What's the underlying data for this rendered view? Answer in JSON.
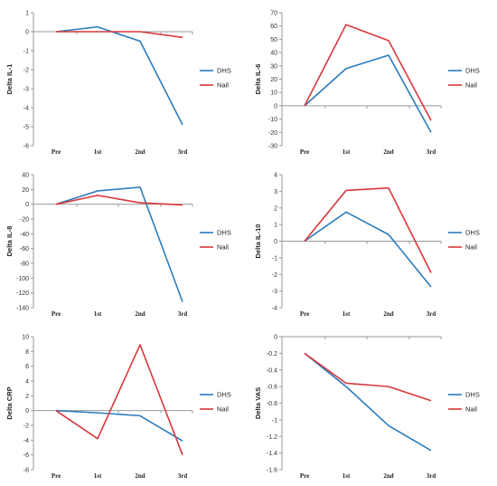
{
  "colors": {
    "DHS": "#2b7bbd",
    "Nail": "#d9373b",
    "axis": "#9a9a9a"
  },
  "chart_data": [
    {
      "type": "line",
      "categories": [
        "Pre",
        "1st",
        "2nd",
        "3rd"
      ],
      "ylabel": "Delta IL-1",
      "ylim": [
        -6,
        1
      ],
      "yticks": [
        1,
        0,
        -1,
        -2,
        -3,
        -4,
        -5,
        -6
      ],
      "ytick_labels": [
        "1",
        "0",
        "-1",
        "-2",
        "-3",
        "-4",
        "-5",
        "-6"
      ],
      "legend_position": "right",
      "series": [
        {
          "name": "DHS",
          "values": [
            0,
            0.25,
            -0.5,
            -4.9
          ]
        },
        {
          "name": "Nail",
          "values": [
            0,
            0,
            0,
            -0.3
          ]
        }
      ]
    },
    {
      "type": "line",
      "categories": [
        "Pre",
        "1st",
        "2nd",
        "3rd"
      ],
      "ylabel": "Delta IL-6",
      "ylim": [
        -30,
        70
      ],
      "yticks": [
        70,
        60,
        50,
        40,
        30,
        20,
        10,
        0,
        -10,
        -20,
        -30
      ],
      "ytick_labels": [
        "70",
        "60",
        "50",
        "40",
        "30",
        "20",
        "10",
        "0",
        "-10",
        "-20",
        "-30"
      ],
      "legend_position": "right",
      "series": [
        {
          "name": "DHS",
          "values": [
            0,
            28,
            38,
            -20
          ]
        },
        {
          "name": "Nail",
          "values": [
            0,
            61,
            49,
            -11
          ]
        }
      ]
    },
    {
      "type": "line",
      "categories": [
        "Pre",
        "1st",
        "2nd",
        "3rd"
      ],
      "ylabel": "Delta IL-8",
      "ylim": [
        -140,
        40
      ],
      "yticks": [
        40,
        20,
        0,
        -20,
        -40,
        -60,
        -80,
        -100,
        -120,
        -140
      ],
      "ytick_labels": [
        "40",
        "20",
        "0",
        "-20",
        "-40",
        "-60",
        "-80",
        "-100",
        "-120",
        "-140"
      ],
      "legend_position": "right",
      "series": [
        {
          "name": "DHS",
          "values": [
            0,
            18,
            23,
            -132
          ]
        },
        {
          "name": "Nail",
          "values": [
            0,
            12,
            2,
            -1
          ]
        }
      ]
    },
    {
      "type": "line",
      "categories": [
        "Pre",
        "1st",
        "2nd",
        "3rd"
      ],
      "ylabel": "Delta IL-10",
      "ylim": [
        -4,
        4
      ],
      "yticks": [
        4,
        3,
        2,
        1,
        0,
        -1,
        -2,
        -3,
        -4
      ],
      "ytick_labels": [
        "4",
        "3",
        "2",
        "1",
        "0",
        "-1",
        "-2",
        "-3",
        "-4"
      ],
      "legend_position": "right",
      "series": [
        {
          "name": "DHS",
          "values": [
            0,
            1.75,
            0.4,
            -2.75
          ]
        },
        {
          "name": "Nail",
          "values": [
            0,
            3.05,
            3.2,
            -1.9
          ]
        }
      ]
    },
    {
      "type": "line",
      "categories": [
        "Pre",
        "1st",
        "2nd",
        "3rd"
      ],
      "ylabel": "Delta CRP",
      "ylim": [
        -8,
        10
      ],
      "yticks": [
        10,
        8,
        6,
        4,
        2,
        0,
        -2,
        -4,
        -6,
        -8
      ],
      "ytick_labels": [
        "10",
        "8",
        "6",
        "4",
        "2",
        "0",
        "-2",
        "-4",
        "-6",
        "-8"
      ],
      "legend_position": "right",
      "series": [
        {
          "name": "DHS",
          "values": [
            0,
            -0.3,
            -0.7,
            -4.1
          ]
        },
        {
          "name": "Nail",
          "values": [
            0,
            -3.8,
            8.9,
            -6
          ]
        }
      ]
    },
    {
      "type": "line",
      "categories": [
        "Pre",
        "1st",
        "2nd",
        "3rd"
      ],
      "ylabel": "Delta VAS",
      "ylim": [
        -1.6,
        0
      ],
      "yticks": [
        0,
        -0.2,
        -0.4,
        -0.6,
        -0.8,
        -1,
        -1.2,
        -1.4,
        -1.6
      ],
      "ytick_labels": [
        "0",
        "-0.2",
        "-0.4",
        "-0.6",
        "-0.8",
        "-1",
        "-1.2",
        "-1.4",
        "-1.6"
      ],
      "legend_position": "right",
      "series": [
        {
          "name": "DHS",
          "values": [
            -0.2,
            -0.6,
            -1.07,
            -1.37
          ]
        },
        {
          "name": "Nail",
          "values": [
            -0.2,
            -0.56,
            -0.6,
            -0.77
          ]
        }
      ]
    }
  ]
}
